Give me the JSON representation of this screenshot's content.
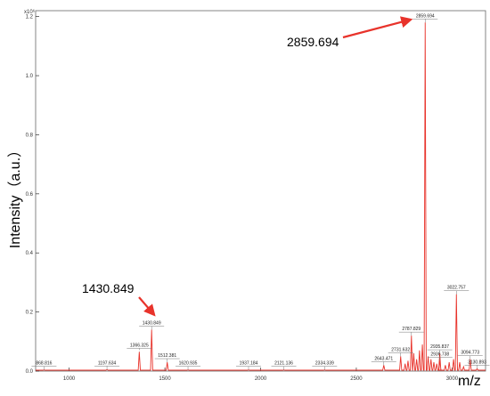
{
  "chart_data": {
    "type": "line",
    "xlabel": "m/z",
    "ylabel": "Intensity（a.u.）",
    "y_scale_label": "x10⁶",
    "xlim": [
      825,
      3175
    ],
    "ylim": [
      0,
      1.22
    ],
    "x_ticks": [
      "1000",
      "1500",
      "2000",
      "2500",
      "3000"
    ],
    "x_tick_values": [
      1000,
      1500,
      2000,
      2500,
      3000
    ],
    "y_ticks": [
      "0.0",
      "0.2",
      "0.4",
      "0.6",
      "0.8",
      "1.0",
      "1.2"
    ],
    "y_tick_values": [
      0.0,
      0.2,
      0.4,
      0.6,
      0.8,
      1.0,
      1.2
    ],
    "series_color": "#e8332b",
    "annotation_color": "#e8332b",
    "peaks": [
      {
        "mz": 868.816,
        "label": "868.816",
        "intensity": 0.004
      },
      {
        "mz": 1197.634,
        "label": "1197.634",
        "intensity": 0.005
      },
      {
        "mz": 1366.325,
        "label": "1366.325",
        "intensity": 0.065,
        "dashed": true
      },
      {
        "mz": 1430.849,
        "label": "1430.849",
        "intensity": 0.14
      },
      {
        "mz": 1512.381,
        "label": "1512.381",
        "intensity": 0.03
      },
      {
        "mz": 1620.935,
        "label": "1620.935",
        "intensity": 0.004
      },
      {
        "mz": 1937.184,
        "label": "1937.184",
        "intensity": 0.004
      },
      {
        "mz": 2121.136,
        "label": "2121.136",
        "intensity": 0.004
      },
      {
        "mz": 2334.339,
        "label": "2334.339",
        "intensity": 0.004
      },
      {
        "mz": 2643.471,
        "label": "2643.471",
        "intensity": 0.02
      },
      {
        "mz": 2731.632,
        "label": "2731.632",
        "intensity": 0.05
      },
      {
        "mz": 2787.829,
        "label": "2787.829",
        "intensity": 0.12
      },
      {
        "mz": 2859.694,
        "label": "2859.694",
        "intensity": 1.18
      },
      {
        "mz": 2935.837,
        "label": "2935.837",
        "intensity": 0.06
      },
      {
        "mz": 2936.738,
        "label": "2936.738",
        "intensity": 0.035
      },
      {
        "mz": 3022.757,
        "label": "3022.757",
        "intensity": 0.26
      },
      {
        "mz": 3094.773,
        "label": "3094.773",
        "intensity": 0.04
      },
      {
        "mz": 3130.893,
        "label": "3130.893",
        "intensity": 0.008
      }
    ],
    "minor_peaks": [
      {
        "mz": 2755,
        "intensity": 0.025
      },
      {
        "mz": 2770,
        "intensity": 0.035
      },
      {
        "mz": 2800,
        "intensity": 0.06
      },
      {
        "mz": 2815,
        "intensity": 0.04
      },
      {
        "mz": 2830,
        "intensity": 0.07
      },
      {
        "mz": 2845,
        "intensity": 0.09
      },
      {
        "mz": 2875,
        "intensity": 0.05
      },
      {
        "mz": 2890,
        "intensity": 0.04
      },
      {
        "mz": 2905,
        "intensity": 0.03
      },
      {
        "mz": 2920,
        "intensity": 0.025
      },
      {
        "mz": 2965,
        "intensity": 0.02
      },
      {
        "mz": 2985,
        "intensity": 0.03
      },
      {
        "mz": 3008,
        "intensity": 0.04
      },
      {
        "mz": 3040,
        "intensity": 0.03
      },
      {
        "mz": 3060,
        "intensity": 0.015
      }
    ],
    "callouts": [
      {
        "mz": 1430.849,
        "text": "1430.849"
      },
      {
        "mz": 2859.694,
        "text": "2859.694"
      }
    ]
  }
}
